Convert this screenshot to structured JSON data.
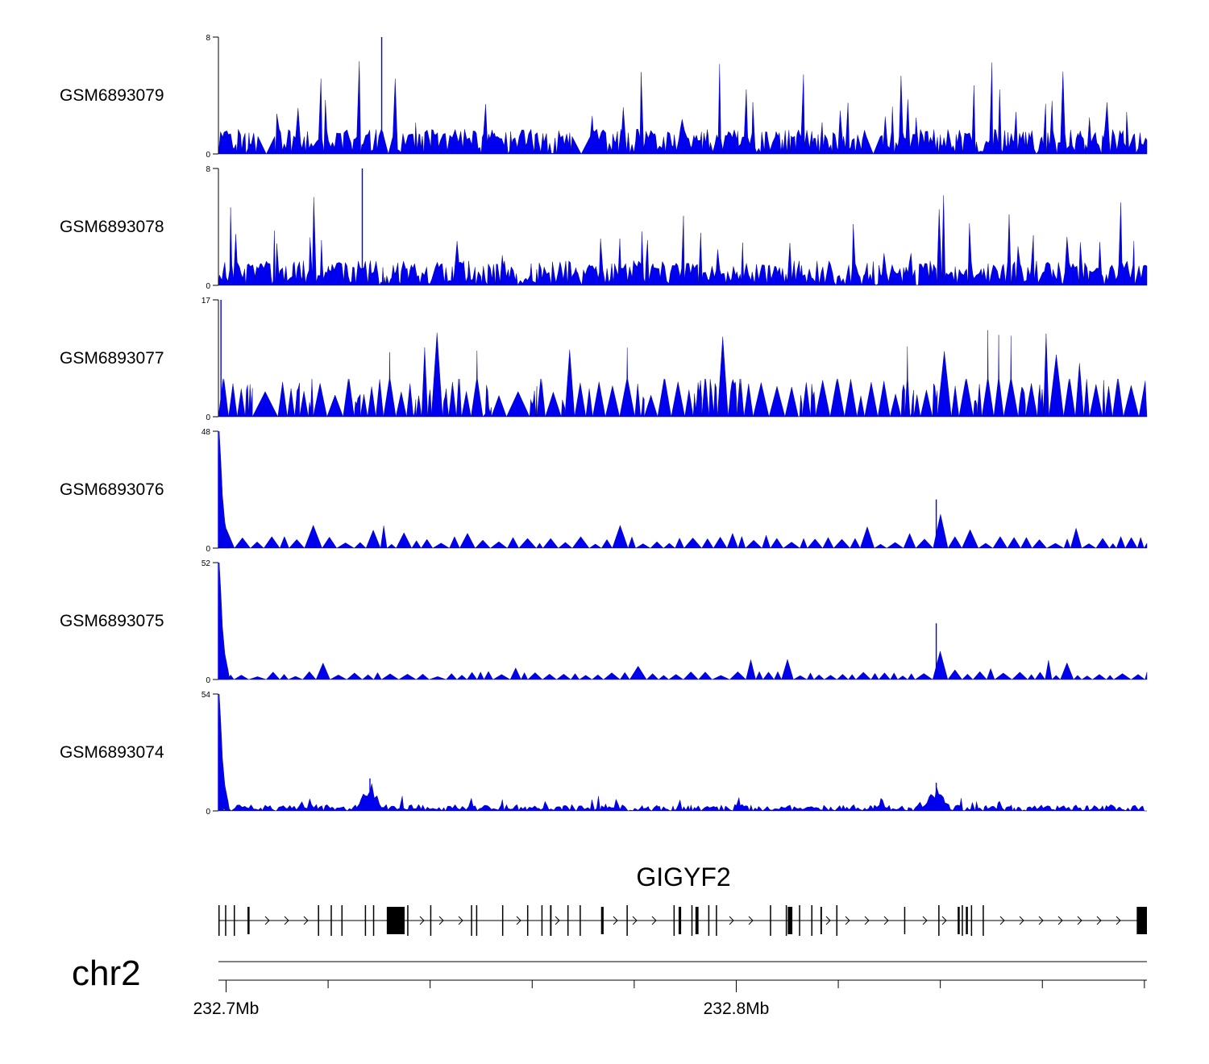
{
  "chart_data": {
    "type": "area",
    "title": "",
    "chromosome": "chr2",
    "gene": "GIGYF2",
    "strand": "+",
    "genome_axis": {
      "unit": "Mb",
      "range": [
        232.6985,
        232.8805
      ],
      "major_ticks": [
        {
          "value": 232.7,
          "label": "232.7Mb"
        },
        {
          "value": 232.8,
          "label": "232.8Mb"
        }
      ],
      "minor_ticks": [
        232.72,
        232.74,
        232.76,
        232.78,
        232.82,
        232.84,
        232.86,
        232.88
      ]
    },
    "tracks": [
      {
        "name": "GSM6893079",
        "ymax": 8,
        "ymin": 0,
        "color": "#0000ee",
        "pattern": "spiky_low",
        "baseline_level": 1.6
      },
      {
        "name": "GSM6893078",
        "ymax": 8,
        "ymin": 0,
        "color": "#0000ee",
        "pattern": "spiky_low",
        "baseline_level": 1.6
      },
      {
        "name": "GSM6893077",
        "ymax": 17,
        "ymin": 0,
        "color": "#0000ee",
        "pattern": "triangles",
        "baseline_level": 5.5
      },
      {
        "name": "GSM6893076",
        "ymax": 48,
        "ymin": 0,
        "color": "#0000ee",
        "pattern": "tss_peak_triangles",
        "baseline_level": 4
      },
      {
        "name": "GSM6893075",
        "ymax": 52,
        "ymin": 0,
        "color": "#0000ee",
        "pattern": "tss_peak_triangles",
        "baseline_level": 3
      },
      {
        "name": "GSM6893074",
        "ymax": 54,
        "ymin": 0,
        "color": "#0000ee",
        "pattern": "tss_peak_clusters",
        "baseline_level": 2
      }
    ],
    "tss_position": 232.6985,
    "notable_peaks": [
      {
        "track": "GSM6893079",
        "position": 232.7305,
        "value": 8
      },
      {
        "track": "GSM6893078",
        "position": 232.7267,
        "value": 8
      },
      {
        "track": "GSM6893077",
        "position": 232.699,
        "value": 17
      },
      {
        "track": "GSM6893076",
        "position": 232.6985,
        "value": 48
      },
      {
        "track": "GSM6893076",
        "position": 232.8392,
        "value": 20
      },
      {
        "track": "GSM6893075",
        "position": 232.6985,
        "value": 52
      },
      {
        "track": "GSM6893075",
        "position": 232.8392,
        "value": 25
      },
      {
        "track": "GSM6893074",
        "position": 232.6985,
        "value": 54
      },
      {
        "track": "GSM6893074",
        "position": 232.7282,
        "value": 15
      },
      {
        "track": "GSM6893074",
        "position": 232.8392,
        "value": 13
      }
    ],
    "gene_model": {
      "start": 232.6985,
      "end": 232.8805,
      "exons": [
        {
          "start": 232.6985,
          "end": 232.6987,
          "thick": false
        },
        {
          "start": 232.6998,
          "end": 232.7,
          "thick": false
        },
        {
          "start": 232.7015,
          "end": 232.7017,
          "thick": false
        },
        {
          "start": 232.7042,
          "end": 232.7046,
          "thick": true
        },
        {
          "start": 232.718,
          "end": 232.7182,
          "thick": false
        },
        {
          "start": 232.7205,
          "end": 232.7207,
          "thick": false
        },
        {
          "start": 232.7226,
          "end": 232.7228,
          "thick": false
        },
        {
          "start": 232.7272,
          "end": 232.7274,
          "thick": false
        },
        {
          "start": 232.7288,
          "end": 232.729,
          "thick": false
        },
        {
          "start": 232.7315,
          "end": 232.735,
          "thick": true
        },
        {
          "start": 232.7355,
          "end": 232.7357,
          "thick": false
        },
        {
          "start": 232.74,
          "end": 232.7402,
          "thick": false
        },
        {
          "start": 232.748,
          "end": 232.7482,
          "thick": false
        },
        {
          "start": 232.749,
          "end": 232.7492,
          "thick": false
        },
        {
          "start": 232.7541,
          "end": 232.7543,
          "thick": false
        },
        {
          "start": 232.759,
          "end": 232.7592,
          "thick": false
        },
        {
          "start": 232.7618,
          "end": 232.762,
          "thick": false
        },
        {
          "start": 232.7635,
          "end": 232.7638,
          "thick": false
        },
        {
          "start": 232.7669,
          "end": 232.7671,
          "thick": false
        },
        {
          "start": 232.7693,
          "end": 232.7695,
          "thick": false
        },
        {
          "start": 232.7735,
          "end": 232.774,
          "thick": true
        },
        {
          "start": 232.7785,
          "end": 232.7787,
          "thick": false
        },
        {
          "start": 232.7877,
          "end": 232.7879,
          "thick": false
        },
        {
          "start": 232.7887,
          "end": 232.7892,
          "thick": true
        },
        {
          "start": 232.7912,
          "end": 232.7914,
          "thick": false
        },
        {
          "start": 232.792,
          "end": 232.7926,
          "thick": true
        },
        {
          "start": 232.7945,
          "end": 232.7947,
          "thick": false
        },
        {
          "start": 232.796,
          "end": 232.7962,
          "thick": false
        },
        {
          "start": 232.8066,
          "end": 232.8068,
          "thick": false
        },
        {
          "start": 232.8097,
          "end": 232.8099,
          "thick": false
        },
        {
          "start": 232.8101,
          "end": 232.811,
          "thick": true
        },
        {
          "start": 232.8123,
          "end": 232.8125,
          "thick": false
        },
        {
          "start": 232.8147,
          "end": 232.8149,
          "thick": false
        },
        {
          "start": 232.8165,
          "end": 232.8168,
          "thick": true
        },
        {
          "start": 232.8196,
          "end": 232.8198,
          "thick": false
        },
        {
          "start": 232.8329,
          "end": 232.8331,
          "thick": true
        },
        {
          "start": 232.8396,
          "end": 232.8398,
          "thick": false
        },
        {
          "start": 232.8434,
          "end": 232.8438,
          "thick": true
        },
        {
          "start": 232.8442,
          "end": 232.8444,
          "thick": false
        },
        {
          "start": 232.845,
          "end": 232.8454,
          "thick": true
        },
        {
          "start": 232.846,
          "end": 232.8462,
          "thick": false
        },
        {
          "start": 232.8483,
          "end": 232.8485,
          "thick": false
        },
        {
          "start": 232.8785,
          "end": 232.8805,
          "thick": true
        }
      ]
    }
  }
}
